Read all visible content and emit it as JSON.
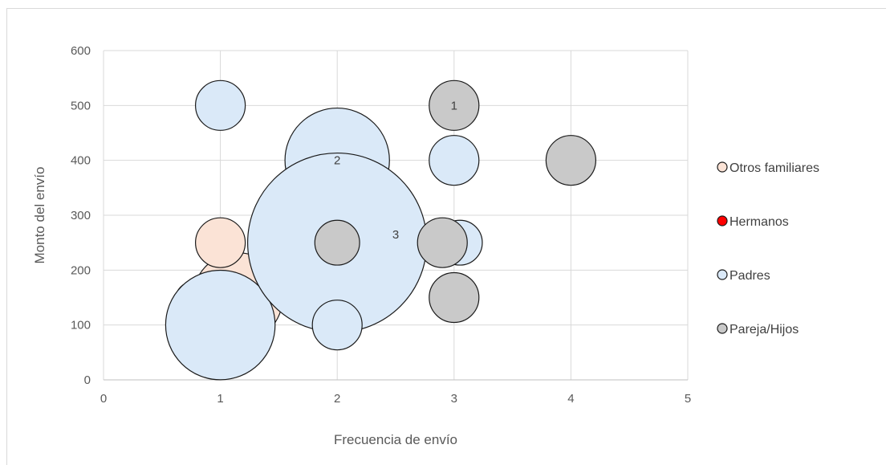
{
  "chart_data": {
    "type": "bubble",
    "xlabel": "Frecuencia de envío",
    "ylabel": "Monto del envío",
    "xlim": [
      0,
      5
    ],
    "ylim": [
      0,
      600
    ],
    "x_ticks": [
      "0",
      "1",
      "2",
      "3",
      "4",
      "5"
    ],
    "y_ticks": [
      "0",
      "100",
      "200",
      "300",
      "400",
      "500",
      "600"
    ],
    "grid": true,
    "legend_position": "right",
    "series": [
      {
        "name": "Otros familiares",
        "color": "#fbe3d6",
        "points": [
          {
            "x": 1,
            "y": 250,
            "size": 1
          },
          {
            "x": 1.15,
            "y": 150,
            "size": 1.8
          },
          {
            "x": 2,
            "y": 150,
            "size": 1
          }
        ]
      },
      {
        "name": "Hermanos",
        "color": "#ff0000",
        "points": [
          {
            "x": 0.75,
            "y": 150,
            "size": 0.6
          }
        ]
      },
      {
        "name": "Padres",
        "color": "#dae9f8",
        "points": [
          {
            "x": 1,
            "y": 500,
            "size": 1
          },
          {
            "x": 0.9,
            "y": 150,
            "size": 0.8
          },
          {
            "x": 1,
            "y": 100,
            "size": 2.2
          },
          {
            "x": 2,
            "y": 400,
            "size": 2.1
          },
          {
            "x": 2,
            "y": 250,
            "size": 3.6
          },
          {
            "x": 2,
            "y": 100,
            "size": 1
          },
          {
            "x": 3,
            "y": 400,
            "size": 1
          },
          {
            "x": 3.05,
            "y": 250,
            "size": 0.9
          }
        ]
      },
      {
        "name": "Pareja/Hijos",
        "color": "#c9c9c9",
        "points": [
          {
            "x": 3,
            "y": 500,
            "size": 1
          },
          {
            "x": 2,
            "y": 250,
            "size": 0.9
          },
          {
            "x": 2.9,
            "y": 250,
            "size": 1
          },
          {
            "x": 3,
            "y": 150,
            "size": 1
          },
          {
            "x": 4,
            "y": 400,
            "size": 1
          }
        ]
      }
    ],
    "annotations": [
      {
        "text": "1",
        "x": 3,
        "y": 500
      },
      {
        "text": "2",
        "x": 2,
        "y": 400
      },
      {
        "text": "3",
        "x": 2.5,
        "y": 265
      }
    ]
  }
}
